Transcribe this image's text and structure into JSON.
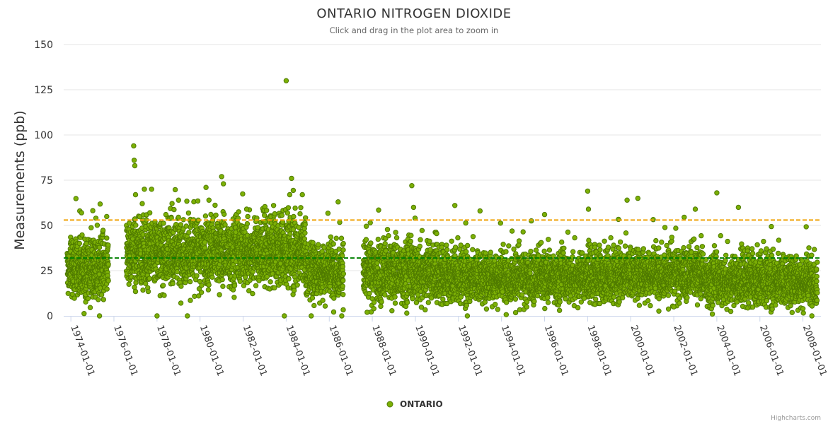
{
  "chart_data": {
    "type": "scatter",
    "title": "ONTARIO NITROGEN DIOXIDE",
    "subtitle": "Click and drag in the plot area to zoom in",
    "ylabel": "Measurements (ppb)",
    "xlabel": "",
    "ylim": [
      0,
      150
    ],
    "yticks": [
      0,
      25,
      50,
      75,
      100,
      125,
      150
    ],
    "xlim": [
      "1973-09-01",
      "2008-11-01"
    ],
    "xtick_labels": [
      "1974-01-01",
      "1976-01-01",
      "1978-01-01",
      "1980-01-01",
      "1982-01-01",
      "1984-01-01",
      "1986-01-01",
      "1988-01-01",
      "1990-01-01",
      "1992-01-01",
      "1994-01-01",
      "1996-01-01",
      "1998-01-01",
      "2000-01-01",
      "2002-01-01",
      "2004-01-01",
      "2006-01-01",
      "2008-01-01"
    ],
    "grid": "horizontal",
    "legend_position": "bottom-center",
    "series": [
      {
        "name": "ONTARIO",
        "color": "#7cb005",
        "marker_edge_color": "#4f7a00",
        "mean": 32,
        "data_gaps": [
          [
            "1975-10-01",
            "1976-08-01"
          ],
          [
            "1986-09-01",
            "1987-08-01"
          ]
        ],
        "period_means": [
          {
            "start": "1973-11-01",
            "end": "1975-10-01",
            "mean": 26,
            "spread": 10
          },
          {
            "start": "1976-08-01",
            "end": "1984-12-01",
            "mean": 35,
            "spread": 11
          },
          {
            "start": "1984-12-01",
            "end": "1986-09-01",
            "mean": 25,
            "spread": 9
          },
          {
            "start": "1987-08-01",
            "end": "1991-01-01",
            "mean": 24,
            "spread": 10
          },
          {
            "start": "1991-01-01",
            "end": "1999-06-01",
            "mean": 21,
            "spread": 8
          },
          {
            "start": "1999-06-01",
            "end": "2003-06-01",
            "mean": 23,
            "spread": 8
          },
          {
            "start": "2003-06-01",
            "end": "2008-09-01",
            "mean": 19,
            "spread": 8
          }
        ],
        "points_sample": [
          {
            "x": "1974-06-01",
            "y": 58
          },
          {
            "x": "1974-07-01",
            "y": 57
          },
          {
            "x": "1975-03-01",
            "y": 54
          },
          {
            "x": "1975-05-01",
            "y": 0
          },
          {
            "x": "1975-09-01",
            "y": 43
          },
          {
            "x": "1976-12-01",
            "y": 94
          },
          {
            "x": "1976-12-10",
            "y": 86
          },
          {
            "x": "1976-12-20",
            "y": 83
          },
          {
            "x": "1977-01-01",
            "y": 67
          },
          {
            "x": "1977-06-01",
            "y": 70
          },
          {
            "x": "1977-10-01",
            "y": 70
          },
          {
            "x": "1978-01-01",
            "y": 0
          },
          {
            "x": "1978-06-01",
            "y": 56
          },
          {
            "x": "1979-01-01",
            "y": 64
          },
          {
            "x": "1979-06-01",
            "y": 0
          },
          {
            "x": "1980-06-01",
            "y": 64
          },
          {
            "x": "1981-01-01",
            "y": 77
          },
          {
            "x": "1981-02-01",
            "y": 73
          },
          {
            "x": "1982-03-01",
            "y": 59
          },
          {
            "x": "1983-06-01",
            "y": 61
          },
          {
            "x": "1983-12-01",
            "y": 0
          },
          {
            "x": "1984-01-01",
            "y": 130
          },
          {
            "x": "1984-04-01",
            "y": 76
          },
          {
            "x": "1984-03-01",
            "y": 67
          },
          {
            "x": "1984-10-01",
            "y": 67
          },
          {
            "x": "1985-03-01",
            "y": 0
          },
          {
            "x": "1986-06-01",
            "y": 63
          },
          {
            "x": "1986-08-01",
            "y": 0
          },
          {
            "x": "1989-11-01",
            "y": 72
          },
          {
            "x": "1989-12-01",
            "y": 60
          },
          {
            "x": "1991-11-01",
            "y": 61
          },
          {
            "x": "1992-06-01",
            "y": 0
          },
          {
            "x": "1993-01-01",
            "y": 58
          },
          {
            "x": "1996-01-01",
            "y": 56
          },
          {
            "x": "1998-01-01",
            "y": 69
          },
          {
            "x": "1998-01-15",
            "y": 59
          },
          {
            "x": "1999-11-01",
            "y": 64
          },
          {
            "x": "2000-05-01",
            "y": 65
          },
          {
            "x": "2002-01-01",
            "y": 5
          },
          {
            "x": "2003-01-01",
            "y": 59
          },
          {
            "x": "2004-01-01",
            "y": 68
          },
          {
            "x": "2005-01-01",
            "y": 60
          },
          {
            "x": "2008-01-01",
            "y": 4
          }
        ]
      }
    ],
    "plot_lines": [
      {
        "axis": "y",
        "value": 53,
        "color": "#f0a30a",
        "style": "dashed"
      },
      {
        "axis": "y",
        "value": 32,
        "color": "#008000",
        "style": "dashed"
      }
    ],
    "credits": "Highcharts.com"
  },
  "colors": {
    "grid": "#e6e6e6",
    "axis_line": "#ccd6eb",
    "point_fill": "#7cb005",
    "point_stroke": "#4f7a00"
  }
}
